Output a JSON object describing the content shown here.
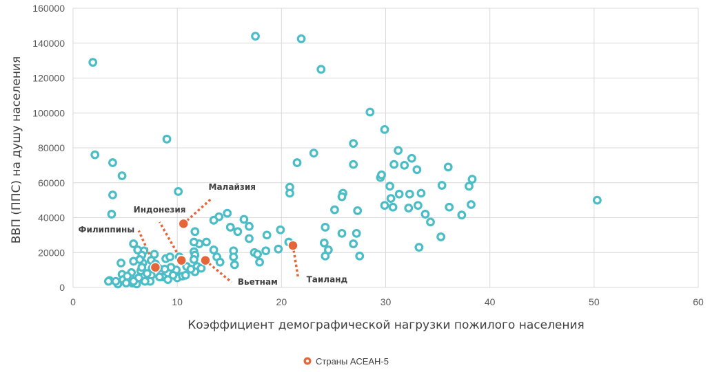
{
  "chart_data": {
    "type": "scatter",
    "xlabel": "Коэффициент демографической нагрузки пожилого населения",
    "ylabel": "ВВП (ППС) на душу населения",
    "xlim": [
      0,
      60
    ],
    "ylim": [
      0,
      160000
    ],
    "x_ticks": [
      0,
      10,
      20,
      30,
      40,
      50,
      60
    ],
    "y_ticks": [
      0,
      20000,
      40000,
      60000,
      80000,
      100000,
      120000,
      140000,
      160000
    ],
    "grid": true,
    "legend_position": "bottom",
    "legend_entries": [
      "Страны АСЕАН-5"
    ],
    "colors": {
      "others": "#4bbdc6",
      "asean": "#e5663a",
      "connector": "#e5663a"
    },
    "series": [
      {
        "values": [
          [
            1.9,
            129000
          ],
          [
            2.1,
            76000
          ],
          [
            3.8,
            71500
          ],
          [
            3.8,
            53000
          ],
          [
            3.7,
            42000
          ],
          [
            4.7,
            64000
          ],
          [
            9,
            85000
          ],
          [
            10.1,
            55000
          ],
          [
            17.5,
            144000
          ],
          [
            21.9,
            142500
          ],
          [
            23.8,
            125000
          ],
          [
            28.5,
            100500
          ],
          [
            29.9,
            90500
          ],
          [
            26.9,
            82500
          ],
          [
            23.1,
            77000
          ],
          [
            31.2,
            78500
          ],
          [
            32.5,
            74000
          ],
          [
            31.8,
            70000
          ],
          [
            30.8,
            70500
          ],
          [
            26.9,
            70500
          ],
          [
            21.5,
            71500
          ],
          [
            36,
            69000
          ],
          [
            33,
            67500
          ],
          [
            29.5,
            63000
          ],
          [
            29.6,
            64500
          ],
          [
            20.8,
            57500
          ],
          [
            20.8,
            54000
          ],
          [
            25.9,
            54000
          ],
          [
            25.8,
            52000
          ],
          [
            30.4,
            58000
          ],
          [
            31.3,
            53500
          ],
          [
            32.3,
            53500
          ],
          [
            33.4,
            54000
          ],
          [
            35.4,
            58500
          ],
          [
            38,
            58000
          ],
          [
            38.3,
            62000
          ],
          [
            30.5,
            51000
          ],
          [
            29.9,
            47000
          ],
          [
            30.7,
            46000
          ],
          [
            32.2,
            45500
          ],
          [
            33.1,
            47000
          ],
          [
            33.8,
            42000
          ],
          [
            34.3,
            37500
          ],
          [
            36.1,
            46000
          ],
          [
            37.3,
            41500
          ],
          [
            38.2,
            47500
          ],
          [
            27.3,
            44000
          ],
          [
            25.1,
            44500
          ],
          [
            50.3,
            50000
          ],
          [
            33.2,
            23000
          ],
          [
            35.3,
            29000
          ],
          [
            27.5,
            18000
          ],
          [
            26.9,
            25000
          ],
          [
            27.2,
            31000
          ],
          [
            24.2,
            34500
          ],
          [
            25.8,
            31000
          ],
          [
            24.1,
            25500
          ],
          [
            24.2,
            18000
          ],
          [
            24.5,
            21500
          ],
          [
            20.7,
            26000
          ],
          [
            19.9,
            33000
          ],
          [
            19.7,
            22000
          ],
          [
            18.6,
            30000
          ],
          [
            18.5,
            21000
          ],
          [
            17.4,
            20000
          ],
          [
            17.7,
            19000
          ],
          [
            17.9,
            14500
          ],
          [
            16.9,
            28000
          ],
          [
            16.9,
            35000
          ],
          [
            16.4,
            39000
          ],
          [
            15.8,
            32000
          ],
          [
            15.1,
            34500
          ],
          [
            14.8,
            42500
          ],
          [
            14,
            40500
          ],
          [
            13.5,
            38500
          ],
          [
            15.4,
            21000
          ],
          [
            15.4,
            17500
          ],
          [
            15.5,
            13000
          ],
          [
            13.5,
            21500
          ],
          [
            13.8,
            17500
          ],
          [
            14.1,
            14500
          ],
          [
            12.8,
            26000
          ],
          [
            12.1,
            25000
          ],
          [
            11.7,
            32000
          ],
          [
            11.6,
            26000
          ],
          [
            11.6,
            20500
          ],
          [
            11.7,
            18500
          ],
          [
            11.6,
            16000
          ],
          [
            11.9,
            12000
          ],
          [
            11.7,
            9000
          ],
          [
            10.9,
            12000
          ],
          [
            10.2,
            17500
          ],
          [
            9.9,
            10000
          ],
          [
            10,
            5500
          ],
          [
            10.5,
            6500
          ],
          [
            9.4,
            11500
          ],
          [
            8.9,
            16500
          ],
          [
            8.8,
            10500
          ],
          [
            8.6,
            6000
          ],
          [
            9.1,
            4500
          ],
          [
            7.8,
            19000
          ],
          [
            7.5,
            15500
          ],
          [
            7.6,
            11000
          ],
          [
            7.5,
            7000
          ],
          [
            7.4,
            3500
          ],
          [
            6.8,
            21000
          ],
          [
            6.6,
            18500
          ],
          [
            6.7,
            14000
          ],
          [
            6.5,
            9500
          ],
          [
            6.3,
            5500
          ],
          [
            6.9,
            3500
          ],
          [
            6.2,
            21500
          ],
          [
            5.8,
            25000
          ],
          [
            5.8,
            15000
          ],
          [
            5.6,
            8500
          ],
          [
            5.5,
            5000
          ],
          [
            5.7,
            2500
          ],
          [
            4.6,
            14000
          ],
          [
            4.7,
            7500
          ],
          [
            4.8,
            4500
          ],
          [
            4.3,
            2000
          ],
          [
            3.5,
            4000
          ],
          [
            4.1,
            3500
          ],
          [
            3.4,
            3500
          ],
          [
            6.1,
            2000
          ],
          [
            5.1,
            2500
          ],
          [
            5.8,
            3500
          ],
          [
            8.3,
            6000
          ],
          [
            9.6,
            7000
          ],
          [
            6.6,
            11500
          ],
          [
            7.1,
            8000
          ],
          [
            5.2,
            6500
          ],
          [
            9.3,
            17500
          ],
          [
            10.8,
            7000
          ],
          [
            7.9,
            13500
          ],
          [
            8.2,
            11000
          ],
          [
            6.4,
            16000
          ],
          [
            11.3,
            10500
          ],
          [
            12.3,
            11000
          ]
        ]
      },
      {
        "name": "Страны АСЕАН-5",
        "values": [
          [
            10.6,
            36500
          ],
          [
            10.4,
            15500
          ],
          [
            12.7,
            15500
          ],
          [
            7.9,
            11500
          ],
          [
            21.1,
            24000
          ]
        ]
      }
    ],
    "annotations": [
      {
        "text": "Малайзия",
        "point": [
          10.6,
          36500
        ],
        "connector_end": [
          13.3,
          51000
        ],
        "label_at": [
          13.0,
          56000
        ]
      },
      {
        "text": "Индонезия",
        "point": [
          10.4,
          15500
        ],
        "connector_end": [
          8.3,
          37500
        ],
        "label_at": [
          5.8,
          43000
        ]
      },
      {
        "text": "Вьетнам",
        "point": [
          12.7,
          15500
        ],
        "connector_end": [
          15.2,
          3000
        ],
        "label_at": [
          15.8,
          1500
        ]
      },
      {
        "text": "Филиппины",
        "point": [
          7.9,
          11500
        ],
        "connector_end": [
          6.3,
          32500
        ],
        "label_at": [
          0.5,
          31500
        ]
      },
      {
        "text": "Таиланд",
        "point": [
          21.1,
          24000
        ],
        "connector_end": [
          21.6,
          5500
        ],
        "label_at": [
          22.4,
          3000
        ]
      }
    ]
  }
}
